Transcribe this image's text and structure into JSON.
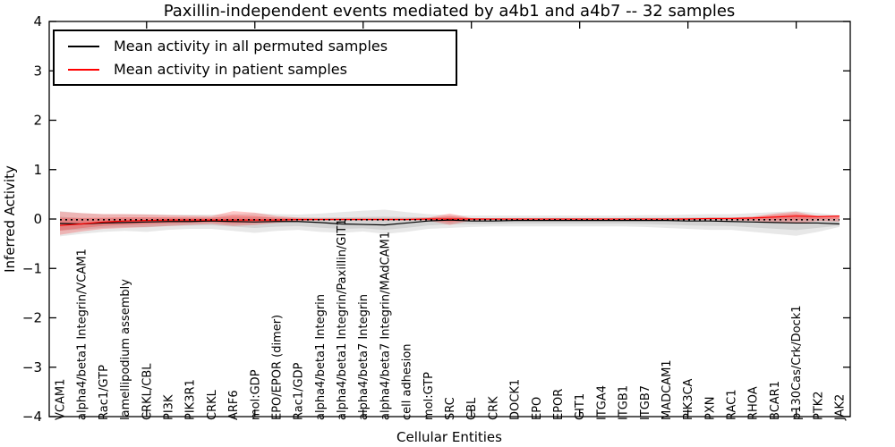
{
  "chart_data": {
    "type": "line",
    "title": "Paxillin-independent events mediated by a4b1 and a4b7 -- 32 samples",
    "xlabel": "Cellular Entities",
    "ylabel": "Inferred Activity",
    "ylim": [
      -4,
      4
    ],
    "yticks": [
      -4,
      -3,
      -2,
      -1,
      0,
      1,
      2,
      3,
      4
    ],
    "legend_position": "upper left",
    "grid": false,
    "categories": [
      "VCAM1",
      "alpha4/beta1 Integrin/VCAM1",
      "Rac1/GTP",
      "lamellipodium assembly",
      "CRKL/CBL",
      "PI3K",
      "PIK3R1",
      "CRKL",
      "ARF6",
      "mol:GDP",
      "EPO/EPOR (dimer)",
      "Rac1/GDP",
      "alpha4/beta1 Integrin",
      "alpha4/beta1 Integrin/Paxillin/GIT1",
      "alpha4/beta7 Integrin",
      "alpha4/beta7 Integrin/MAdCAM1",
      "cell adhesion",
      "mol:GTP",
      "SRC",
      "CBL",
      "CRK",
      "DOCK1",
      "EPO",
      "EPOR",
      "GIT1",
      "ITGA4",
      "ITGB1",
      "ITGB7",
      "MADCAM1",
      "PIK3CA",
      "PXN",
      "RAC1",
      "RHOA",
      "BCAR1",
      "p130Cas/Crk/Dock1",
      "PTK2",
      "JAK2"
    ],
    "major_tick_indices": [
      4,
      9,
      14,
      19,
      24,
      29,
      34
    ],
    "inner_scale": 0.55,
    "legend": [
      {
        "label": "Mean activity in all permuted samples",
        "color": "#000000"
      },
      {
        "label": "Mean activity in patient samples",
        "color": "#ff0000"
      }
    ],
    "series": [
      {
        "name": "Mean activity in all permuted samples",
        "color": "#000000",
        "style": "solid",
        "values": [
          -0.09,
          -0.1,
          -0.08,
          -0.07,
          -0.06,
          -0.05,
          -0.05,
          -0.04,
          -0.05,
          -0.06,
          -0.05,
          -0.05,
          -0.07,
          -0.1,
          -0.11,
          -0.12,
          -0.08,
          -0.04,
          -0.02,
          -0.04,
          -0.04,
          -0.03,
          -0.03,
          -0.03,
          -0.03,
          -0.03,
          -0.03,
          -0.03,
          -0.03,
          -0.04,
          -0.04,
          -0.05,
          -0.06,
          -0.07,
          -0.08,
          -0.08,
          -0.1
        ]
      },
      {
        "name": "Mean activity in patient samples",
        "color": "#ff0000",
        "style": "solid",
        "values": [
          -0.13,
          -0.1,
          -0.06,
          -0.04,
          -0.03,
          -0.02,
          -0.02,
          -0.02,
          -0.02,
          -0.02,
          -0.02,
          -0.01,
          -0.01,
          -0.01,
          -0.01,
          -0.01,
          -0.01,
          0.0,
          0.0,
          0.0,
          0.0,
          0.0,
          0.0,
          0.0,
          0.0,
          0.0,
          0.0,
          0.0,
          0.0,
          0.0,
          0.01,
          0.01,
          0.02,
          0.04,
          0.06,
          0.05,
          0.06
        ]
      },
      {
        "name": "zero baseline",
        "color": "#000000",
        "style": "dotted",
        "constant": -0.015
      }
    ],
    "bands": [
      {
        "name": "permuted samples range",
        "color": "#000000",
        "opacity": 0.09,
        "ref": 0,
        "upper": [
          0.16,
          0.12,
          0.1,
          0.1,
          0.1,
          0.09,
          0.09,
          0.09,
          0.1,
          0.12,
          0.1,
          0.09,
          0.11,
          0.14,
          0.17,
          0.19,
          0.14,
          0.1,
          0.08,
          0.07,
          0.07,
          0.07,
          0.07,
          0.07,
          0.07,
          0.07,
          0.07,
          0.08,
          0.08,
          0.09,
          0.1,
          0.1,
          0.12,
          0.14,
          0.16,
          0.12,
          0.08
        ],
        "lower": [
          -0.35,
          -0.3,
          -0.26,
          -0.24,
          -0.26,
          -0.22,
          -0.2,
          -0.2,
          -0.24,
          -0.28,
          -0.24,
          -0.22,
          -0.26,
          -0.28,
          -0.25,
          -0.3,
          -0.26,
          -0.2,
          -0.18,
          -0.16,
          -0.15,
          -0.15,
          -0.15,
          -0.15,
          -0.15,
          -0.15,
          -0.15,
          -0.16,
          -0.18,
          -0.2,
          -0.22,
          -0.22,
          -0.26,
          -0.3,
          -0.34,
          -0.26,
          -0.16
        ]
      },
      {
        "name": "patient samples range",
        "color": "#ff0000",
        "opacity": 0.22,
        "ref": 1,
        "upper": [
          0.15,
          0.12,
          0.1,
          0.1,
          0.09,
          0.08,
          0.07,
          0.06,
          0.16,
          0.13,
          0.06,
          0.03,
          0.02,
          0.02,
          0.02,
          0.02,
          0.02,
          0.03,
          0.11,
          0.02,
          0.01,
          0.01,
          0.01,
          0.01,
          0.01,
          0.01,
          0.01,
          0.01,
          0.01,
          0.02,
          0.02,
          0.03,
          0.05,
          0.11,
          0.15,
          0.06,
          0.07
        ],
        "lower": [
          -0.32,
          -0.25,
          -0.2,
          -0.18,
          -0.16,
          -0.14,
          -0.12,
          -0.1,
          -0.14,
          -0.12,
          -0.08,
          -0.04,
          -0.03,
          -0.03,
          -0.03,
          -0.03,
          -0.03,
          -0.03,
          -0.12,
          -0.03,
          -0.02,
          -0.02,
          -0.02,
          -0.02,
          -0.02,
          -0.02,
          -0.02,
          -0.02,
          -0.02,
          -0.02,
          -0.02,
          -0.03,
          -0.04,
          -0.07,
          -0.09,
          -0.04,
          -0.05
        ]
      }
    ]
  }
}
